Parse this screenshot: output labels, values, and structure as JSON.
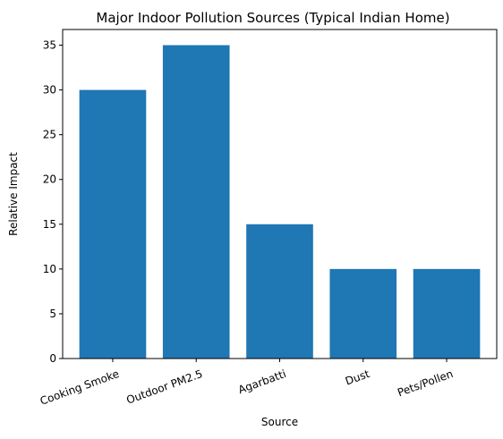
{
  "chart_data": {
    "type": "bar",
    "title": "Major Indoor Pollution Sources (Typical Indian Home)",
    "xlabel": "Source",
    "ylabel": "Relative Impact",
    "categories": [
      "Cooking Smoke",
      "Outdoor PM2.5",
      "Agarbatti",
      "Dust",
      "Pets/Pollen"
    ],
    "values": [
      30,
      35,
      15,
      10,
      10
    ],
    "ylim": [
      0,
      36.75
    ],
    "yticks": [
      "0",
      "5",
      "10",
      "15",
      "20",
      "25",
      "30",
      "35"
    ],
    "bar_color": "#1f77b4",
    "grid": false,
    "legend": "none",
    "x_tick_rotation_deg": -20
  }
}
